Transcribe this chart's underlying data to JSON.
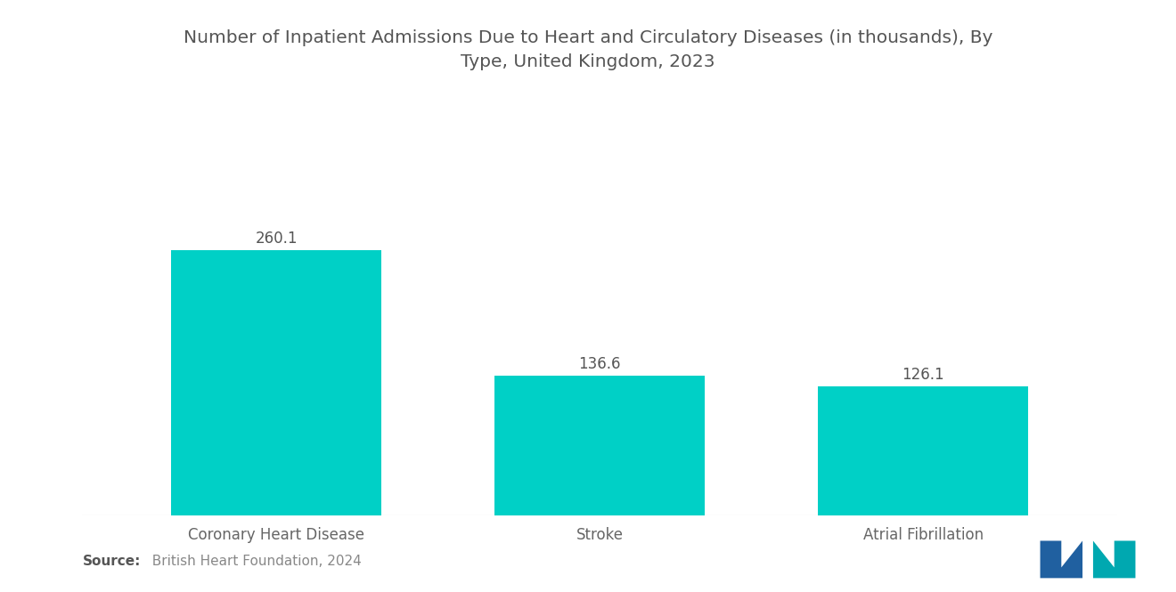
{
  "title": "Number of Inpatient Admissions Due to Heart and Circulatory Diseases (in thousands), By\nType, United Kingdom, 2023",
  "categories": [
    "Coronary Heart Disease",
    "Stroke",
    "Atrial Fibrillation"
  ],
  "values": [
    260.1,
    136.6,
    126.1
  ],
  "bar_color": "#00D0C6",
  "value_labels": [
    "260.1",
    "136.6",
    "126.1"
  ],
  "source_bold": "Source:",
  "source_text": "  British Heart Foundation, 2024",
  "background_color": "#ffffff",
  "title_color": "#555555",
  "label_color": "#666666",
  "value_color": "#555555",
  "source_color": "#888888",
  "title_fontsize": 14.5,
  "label_fontsize": 12,
  "value_fontsize": 12,
  "source_fontsize": 11,
  "ylim": [
    0,
    320
  ],
  "bar_width": 0.65
}
